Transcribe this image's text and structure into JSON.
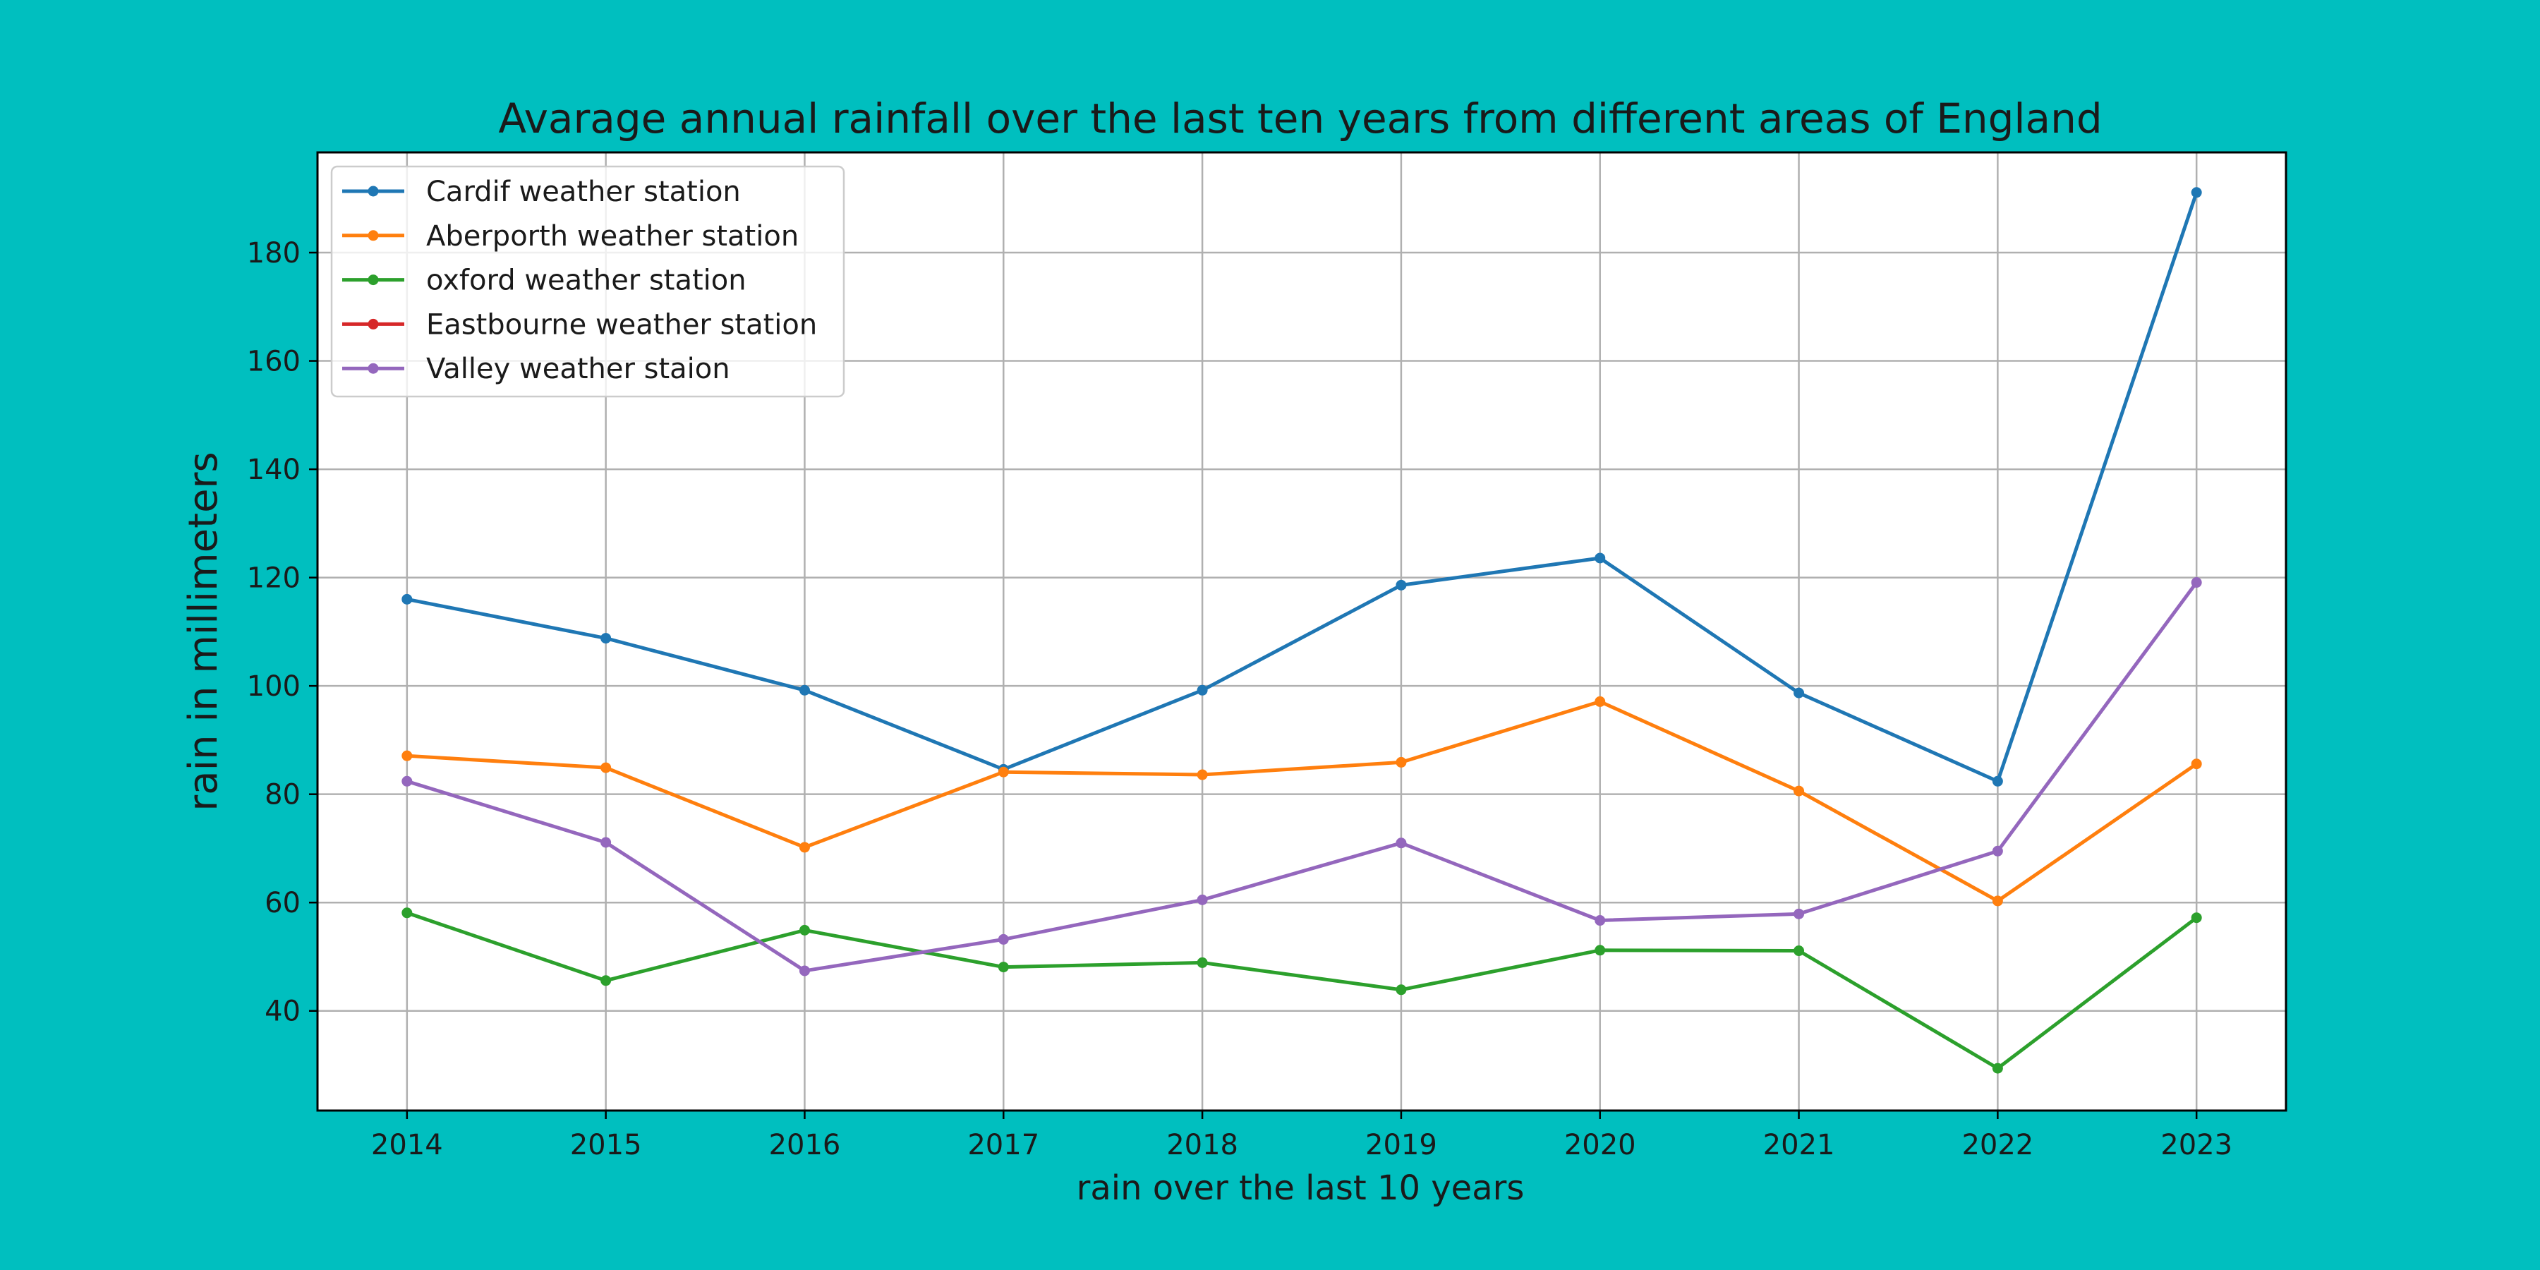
{
  "chart_data": {
    "type": "line",
    "title": "Avarage annual rainfall over the last ten years from different areas of England",
    "xlabel": "rain over the last 10 years",
    "ylabel": "rain in millimeters",
    "x": [
      2014,
      2015,
      2016,
      2017,
      2018,
      2019,
      2020,
      2021,
      2022,
      2023
    ],
    "x_tick_labels": [
      "2014",
      "2015",
      "2016",
      "2017",
      "2018",
      "2019",
      "2020",
      "2021",
      "2022",
      "2023"
    ],
    "y_ticks": [
      40,
      60,
      80,
      100,
      120,
      140,
      160,
      180
    ],
    "ylim": [
      21.6,
      198.5
    ],
    "xlim": [
      2013.55,
      2023.45
    ],
    "grid": true,
    "legend_position": "upper-left",
    "series": [
      {
        "name": "Cardif weather station",
        "color": "#1f77b4",
        "values": [
          116.0,
          108.8,
          99.2,
          84.6,
          99.2,
          118.6,
          123.6,
          98.7,
          82.4,
          191.1
        ]
      },
      {
        "name": "Aberporth weather station",
        "color": "#ff7f0e",
        "values": [
          87.1,
          84.9,
          70.2,
          84.1,
          83.6,
          85.9,
          97.1,
          80.6,
          60.3,
          85.6
        ]
      },
      {
        "name": "oxford weather station",
        "color": "#2ca02c",
        "values": [
          58.1,
          45.6,
          54.9,
          48.1,
          48.9,
          43.9,
          51.2,
          51.1,
          29.4,
          57.2
        ]
      },
      {
        "name": "Eastbourne weather station",
        "color": "#d62728",
        "values": [
          null,
          null,
          null,
          null,
          null,
          null,
          null,
          null,
          null,
          null
        ]
      },
      {
        "name": "Valley weather staion",
        "color": "#9467bd",
        "values": [
          82.4,
          71.1,
          47.4,
          53.2,
          60.5,
          71.0,
          56.7,
          57.9,
          69.5,
          119.1
        ]
      }
    ]
  }
}
